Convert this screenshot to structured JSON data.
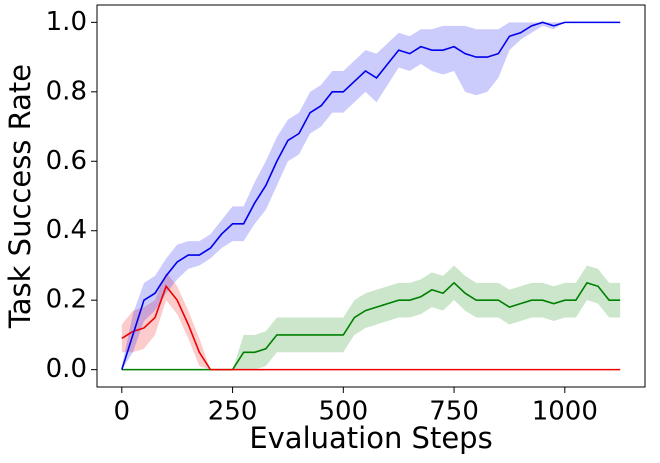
{
  "chart_data": {
    "type": "line",
    "xlabel": "Evaluation Steps",
    "ylabel": "Task Success Rate",
    "x": [
      0,
      25,
      50,
      75,
      100,
      125,
      150,
      175,
      200,
      225,
      250,
      275,
      300,
      325,
      350,
      375,
      400,
      425,
      450,
      475,
      500,
      525,
      550,
      575,
      600,
      625,
      650,
      675,
      700,
      725,
      750,
      775,
      800,
      825,
      850,
      875,
      900,
      925,
      950,
      975,
      1000,
      1025,
      1050,
      1075,
      1100,
      1125
    ],
    "xlim": [
      -56,
      1181
    ],
    "xticks": [
      0,
      250,
      500,
      750,
      1000
    ],
    "ylim": [
      -0.05,
      1.05
    ],
    "yticks": [
      {
        "value": 0,
        "label": "0.0"
      },
      {
        "value": 0.2,
        "label": "0.2"
      },
      {
        "value": 0.4,
        "label": "0.4"
      },
      {
        "value": 0.6,
        "label": "0.6"
      },
      {
        "value": 0.8,
        "label": "0.8"
      },
      {
        "value": 1,
        "label": "1.0"
      }
    ],
    "band_alpha": 0.2,
    "series": [
      {
        "color": "#008000",
        "values": [
          0,
          0,
          0,
          0,
          0,
          0,
          0,
          0,
          0,
          0,
          0,
          0.05,
          0.05,
          0.06,
          0.1,
          0.1,
          0.1,
          0.1,
          0.1,
          0.1,
          0.1,
          0.15,
          0.17,
          0.18,
          0.19,
          0.2,
          0.2,
          0.21,
          0.23,
          0.22,
          0.25,
          0.22,
          0.2,
          0.2,
          0.2,
          0.18,
          0.19,
          0.2,
          0.2,
          0.19,
          0.2,
          0.2,
          0.25,
          0.24,
          0.2,
          0.2
        ],
        "lower": [
          0,
          0,
          0,
          0,
          0,
          0,
          0,
          0,
          0,
          0,
          0,
          0,
          0,
          0.01,
          0.05,
          0.05,
          0.05,
          0.05,
          0.05,
          0.05,
          0.05,
          0.1,
          0.12,
          0.13,
          0.14,
          0.15,
          0.15,
          0.16,
          0.18,
          0.17,
          0.2,
          0.17,
          0.15,
          0.15,
          0.15,
          0.13,
          0.14,
          0.15,
          0.15,
          0.14,
          0.15,
          0.15,
          0.2,
          0.19,
          0.15,
          0.15
        ],
        "upper": [
          0,
          0,
          0,
          0,
          0,
          0,
          0,
          0,
          0,
          0,
          0,
          0.1,
          0.1,
          0.11,
          0.15,
          0.15,
          0.15,
          0.15,
          0.15,
          0.15,
          0.15,
          0.2,
          0.22,
          0.23,
          0.24,
          0.25,
          0.25,
          0.26,
          0.28,
          0.27,
          0.3,
          0.27,
          0.25,
          0.25,
          0.25,
          0.23,
          0.24,
          0.25,
          0.25,
          0.24,
          0.25,
          0.25,
          0.3,
          0.29,
          0.25,
          0.25
        ]
      },
      {
        "color": "#ee0000",
        "values": [
          0.09,
          0.11,
          0.12,
          0.15,
          0.24,
          0.2,
          0.13,
          0.05,
          0,
          0,
          0,
          0,
          0,
          0,
          0,
          0,
          0,
          0,
          0,
          0,
          0,
          0,
          0,
          0,
          0,
          0,
          0,
          0,
          0,
          0,
          0,
          0,
          0,
          0,
          0,
          0,
          0,
          0,
          0,
          0,
          0,
          0,
          0,
          0,
          0,
          0
        ],
        "lower": [
          0.05,
          0.05,
          0.06,
          0.1,
          0.2,
          0.16,
          0.09,
          0.01,
          0,
          0,
          0,
          0,
          0,
          0,
          0,
          0,
          0,
          0,
          0,
          0,
          0,
          0,
          0,
          0,
          0,
          0,
          0,
          0,
          0,
          0,
          0,
          0,
          0,
          0,
          0,
          0,
          0,
          0,
          0,
          0,
          0,
          0,
          0,
          0,
          0,
          0
        ],
        "upper": [
          0.13,
          0.17,
          0.18,
          0.2,
          0.28,
          0.24,
          0.17,
          0.09,
          0,
          0,
          0,
          0,
          0,
          0,
          0,
          0,
          0,
          0,
          0,
          0,
          0,
          0,
          0,
          0,
          0,
          0,
          0,
          0,
          0,
          0,
          0,
          0,
          0,
          0,
          0,
          0,
          0,
          0,
          0,
          0,
          0,
          0,
          0,
          0,
          0,
          0
        ]
      },
      {
        "color": "#0000ee",
        "values": [
          0,
          0.1,
          0.2,
          0.22,
          0.27,
          0.31,
          0.33,
          0.33,
          0.35,
          0.39,
          0.42,
          0.42,
          0.48,
          0.53,
          0.6,
          0.66,
          0.68,
          0.74,
          0.76,
          0.8,
          0.8,
          0.83,
          0.86,
          0.84,
          0.88,
          0.92,
          0.91,
          0.93,
          0.92,
          0.92,
          0.93,
          0.91,
          0.9,
          0.9,
          0.91,
          0.96,
          0.97,
          0.99,
          1,
          0.99,
          1,
          1,
          1,
          1,
          1,
          1
        ],
        "lower": [
          0,
          0.05,
          0.14,
          0.17,
          0.22,
          0.26,
          0.29,
          0.3,
          0.32,
          0.35,
          0.37,
          0.37,
          0.42,
          0.46,
          0.53,
          0.6,
          0.62,
          0.68,
          0.7,
          0.74,
          0.74,
          0.77,
          0.8,
          0.77,
          0.82,
          0.87,
          0.86,
          0.88,
          0.86,
          0.85,
          0.86,
          0.8,
          0.79,
          0.8,
          0.84,
          0.92,
          0.95,
          0.97,
          0.99,
          0.98,
          1,
          1,
          1,
          1,
          1,
          1
        ],
        "upper": [
          0.01,
          0.16,
          0.25,
          0.27,
          0.32,
          0.36,
          0.37,
          0.37,
          0.39,
          0.43,
          0.47,
          0.47,
          0.54,
          0.6,
          0.67,
          0.72,
          0.74,
          0.8,
          0.82,
          0.86,
          0.86,
          0.89,
          0.92,
          0.91,
          0.94,
          0.97,
          0.96,
          0.98,
          0.98,
          0.99,
          0.99,
          0.99,
          0.98,
          0.98,
          0.98,
          1,
          1,
          1,
          1,
          1,
          1,
          1,
          1,
          1,
          1,
          1
        ]
      }
    ]
  }
}
